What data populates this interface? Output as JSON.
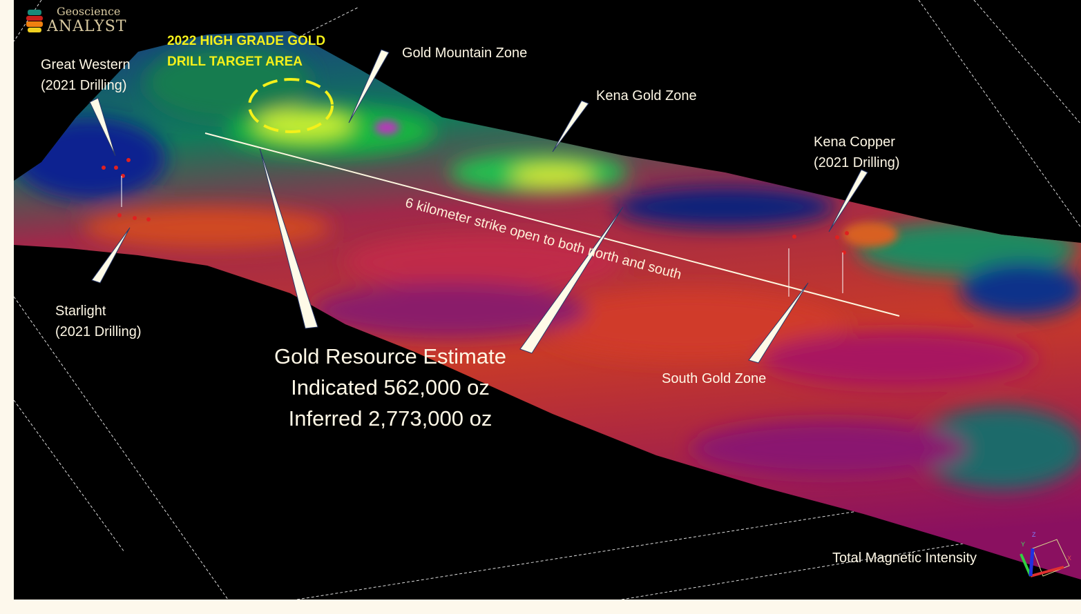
{
  "logo": {
    "line1": "Geoscience",
    "line2": "ANALYST"
  },
  "target_area": {
    "line1": "2022 HIGH GRADE GOLD",
    "line2": "DRILL TARGET AREA",
    "color": "#f4f01a"
  },
  "zones": {
    "great_western": {
      "line1": "Great Western",
      "line2": "(2021 Drilling)"
    },
    "gold_mountain": "Gold Mountain Zone",
    "kena_gold": "Kena Gold Zone",
    "kena_copper": {
      "line1": "Kena Copper",
      "line2": "(2021 Drilling)"
    },
    "starlight": {
      "line1": "Starlight",
      "line2": "(2021 Drilling)"
    },
    "south_gold": "South Gold Zone"
  },
  "strike_note": "6 kilometer strike open to both north and south",
  "resource": {
    "title": "Gold Resource Estimate",
    "indicated": "Indicated 562,000 oz",
    "inferred": "Inferred 2,773,000 oz"
  },
  "layer_label": "Total Magnetic Intensity",
  "axes": {
    "x": "X",
    "y": "Y",
    "z": "Z"
  },
  "colors": {
    "high": "#e8f020",
    "mid": "#20c040",
    "low": "#1020a0",
    "very_low": "#b01070",
    "base": "#d0301a"
  }
}
